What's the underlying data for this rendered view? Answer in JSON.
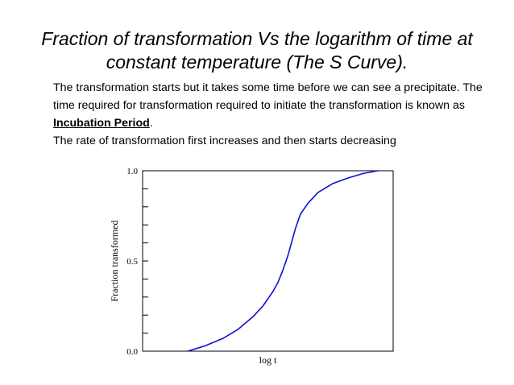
{
  "slide": {
    "title_line1": "Fraction of transformation Vs the logarithm of time at",
    "title_line2": "constant temperature (The S Curve).",
    "para1_before": "The transformation starts but it takes some time before we can see a precipitate. The time required for transformation required to initiate the transformation is known as ",
    "para1_term": "Incubation Period",
    "para1_after": ".",
    "para2": "The rate of transformation first increases and then starts decreasing"
  },
  "chart_data": {
    "type": "line",
    "title": "",
    "xlabel": "log t",
    "ylabel": "Fraction transformed",
    "ylim": [
      0,
      1
    ],
    "yticks": [
      {
        "value": 0.0,
        "label": "0.0"
      },
      {
        "value": 0.5,
        "label": "0.5"
      },
      {
        "value": 1.0,
        "label": "1.0"
      }
    ],
    "minor_tick_step": 0.1,
    "grid": false,
    "line_color": "#1010d0",
    "series": [
      {
        "name": "",
        "x": [
          0.18,
          0.25,
          0.32,
          0.38,
          0.44,
          0.48,
          0.52,
          0.54,
          0.56,
          0.58,
          0.59,
          0.61,
          0.63,
          0.66,
          0.7,
          0.76,
          0.82,
          0.88,
          0.94
        ],
        "y": [
          0.0,
          0.03,
          0.07,
          0.12,
          0.19,
          0.25,
          0.33,
          0.38,
          0.45,
          0.53,
          0.58,
          0.68,
          0.76,
          0.82,
          0.88,
          0.93,
          0.96,
          0.985,
          1.0
        ]
      }
    ]
  }
}
